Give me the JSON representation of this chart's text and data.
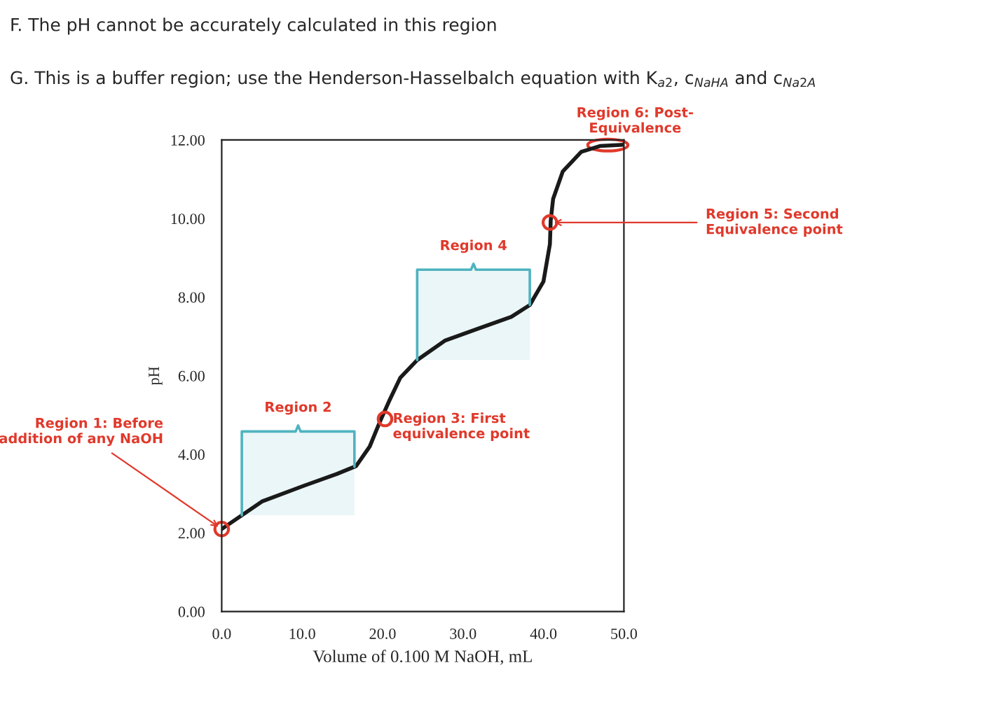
{
  "chart_data": {
    "type": "line",
    "title": "F. The pH cannot be accurately calculated in this region",
    "subtitle": "G. This is a buffer region; use the Henderson-Hasselbalch equation with K$_{a2}$, c$_{NaHA}$ and c$_{Na2A}$",
    "xlabel": "Volume of 0.100 M NaOH, mL",
    "ylabel": "pH",
    "x": [
      0,
      5,
      10.2,
      14.3,
      16.7,
      18.4,
      19.6,
      20.8,
      22.2,
      24.3,
      27.8,
      31.9,
      36,
      38.3,
      40,
      40.8,
      40.9,
      41.2,
      42.4,
      44.7,
      47.1,
      50
    ],
    "series": [
      {
        "color": "#1a1a1a",
        "values": [
          2.1,
          2.8,
          3.2,
          3.5,
          3.7,
          4.2,
          4.8,
          5.35,
          5.95,
          6.4,
          6.9,
          7.2,
          7.5,
          7.8,
          8.4,
          9.35,
          9.95,
          10.5,
          11.2,
          11.7,
          11.85,
          11.88
        ]
      }
    ],
    "xlim": [
      0,
      50
    ],
    "ylim": [
      0,
      12
    ],
    "xticks": [
      {
        "value": 0,
        "label": "0.0"
      },
      {
        "value": 10,
        "label": "10.0"
      },
      {
        "value": 20,
        "label": "20.0"
      },
      {
        "value": 30,
        "label": "30.0"
      },
      {
        "value": 40,
        "label": "40.0"
      },
      {
        "value": 50,
        "label": "50.0"
      }
    ],
    "yticks": [
      {
        "value": 0,
        "label": "0.00"
      },
      {
        "value": 2,
        "label": "2.00"
      },
      {
        "value": 4,
        "label": "4.00"
      },
      {
        "value": 6,
        "label": "6.00"
      },
      {
        "value": 8,
        "label": "8.00"
      },
      {
        "value": 10,
        "label": "10.00"
      },
      {
        "value": 12,
        "label": "12.00"
      }
    ],
    "bands": [
      {
        "axis": "x",
        "from": 2.5,
        "to": 16.5,
        "label": "Region 2",
        "color": "#4fb3bf"
      },
      {
        "axis": "x",
        "from": 24.3,
        "to": 38.3,
        "label": "Region 4",
        "color": "#4fb3bf"
      }
    ],
    "annotations": [
      {
        "text": "Region 1: Before\naddition of any NaOH",
        "x": 0,
        "y": 2.1
      },
      {
        "text": "Region 3: First\nequivalence point",
        "x": 20.3,
        "y": 4.9
      },
      {
        "text": "Region 5: Second\nEquivalence point",
        "x": 40.8,
        "y": 9.9
      },
      {
        "text": "Region 6: Post-\nEquivalence",
        "x": 48,
        "y": 11.87
      }
    ],
    "grid": false
  }
}
